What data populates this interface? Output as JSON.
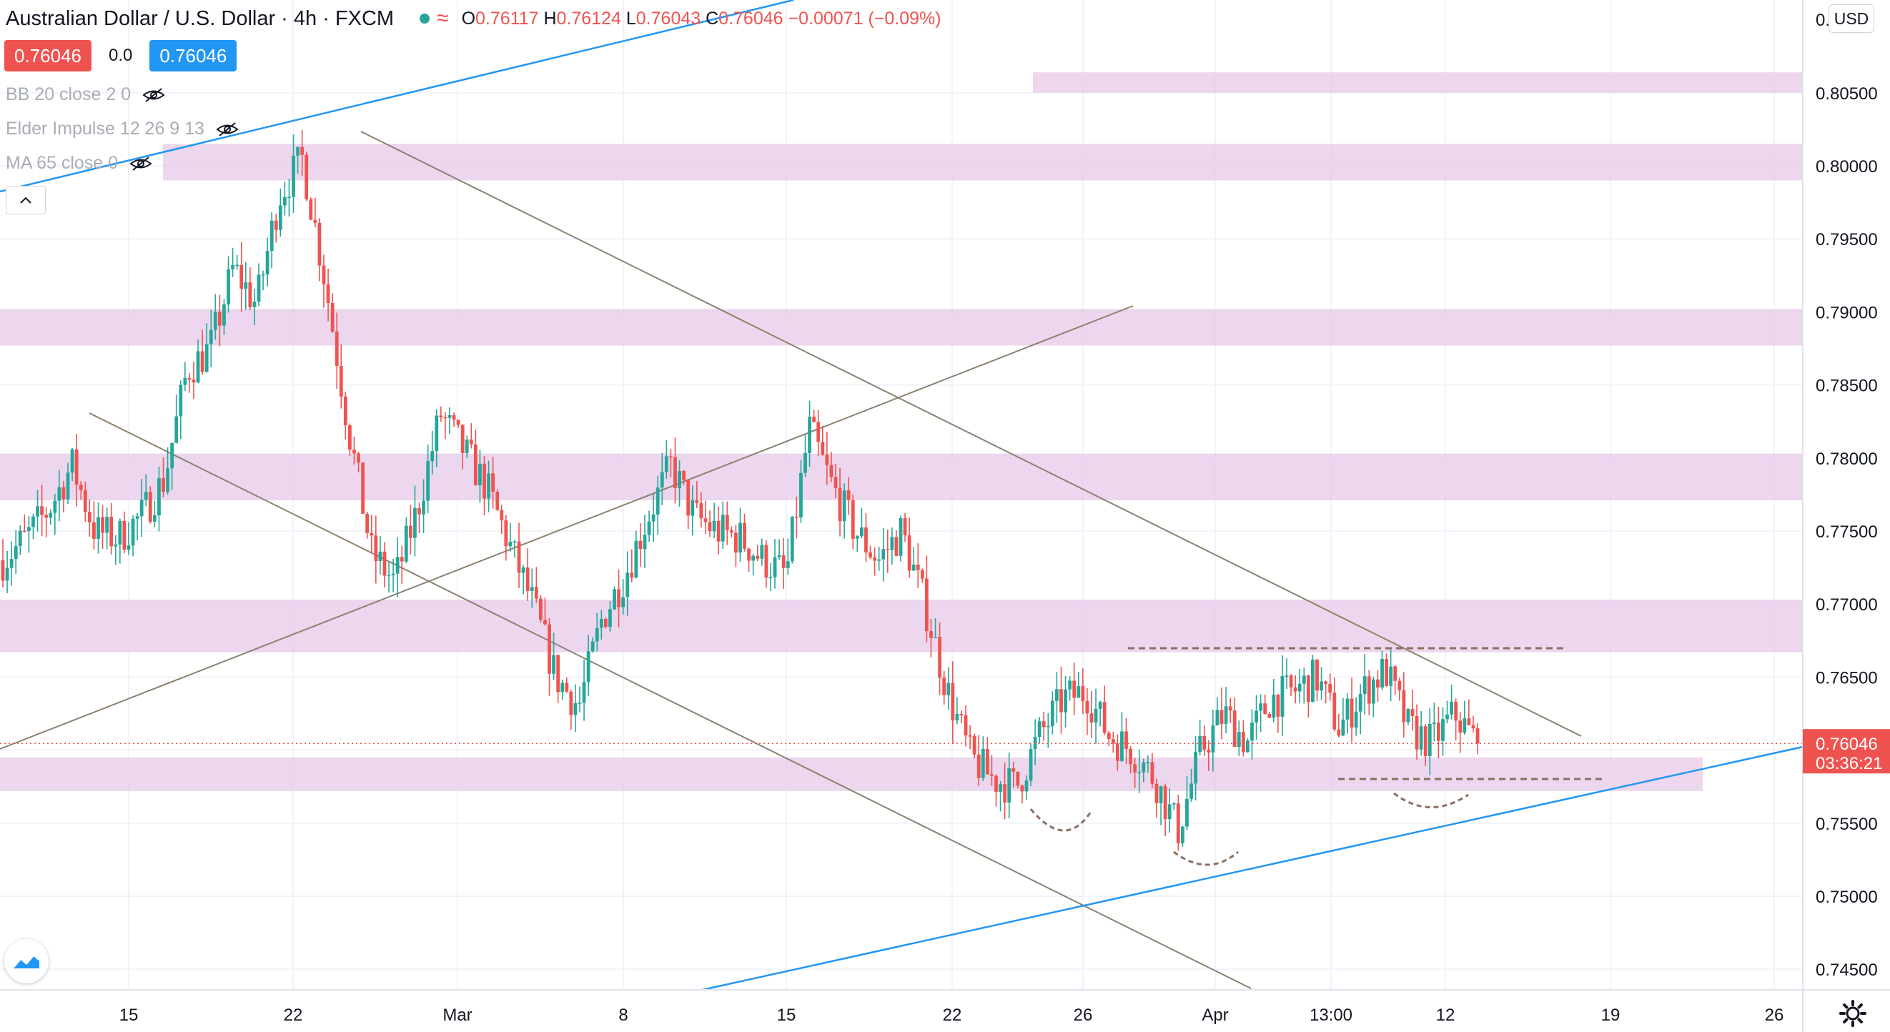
{
  "header": {
    "symbol_title": "Australian Dollar / U.S. Dollar · 4h · FXCM",
    "ohlc": {
      "o_label": "O",
      "o": "0.76117",
      "h_label": "H",
      "h": "0.76124",
      "l_label": "L",
      "l": "0.76043",
      "c_label": "C",
      "c": "0.76046",
      "change": "−0.00071 (−0.09%)"
    },
    "sell_price": "0.76046",
    "spread": "0.0",
    "buy_price": "0.76046",
    "currency_button": "USD"
  },
  "indicators": [
    {
      "label": "BB 20 close 2 0",
      "hidden": true
    },
    {
      "label": "Elder Impulse 12 26 9 13",
      "hidden": true
    },
    {
      "label": "MA 65 close 0",
      "hidden": true
    }
  ],
  "price_axis": {
    "ticks": [
      "0.80500",
      "0.80000",
      "0.79500",
      "0.79000",
      "0.78500",
      "0.78000",
      "0.77500",
      "0.77000",
      "0.76500",
      "0.75500",
      "0.75000",
      "0.74500"
    ],
    "top_partial_label": "0.",
    "current_price_label": "0.76046",
    "countdown_label": "03:36:21"
  },
  "time_axis": {
    "labels": [
      "15",
      "22",
      "Mar",
      "8",
      "15",
      "22",
      "26",
      "Apr",
      "13:00",
      "12",
      "19",
      "26"
    ]
  },
  "colors": {
    "up": "#26a69a",
    "down": "#ef5350",
    "zone": "#e4c7e8",
    "channel_line": "#8c8270",
    "trend_line": "#2196f3",
    "dashed": "#8d6e63",
    "accent": "#2196f3"
  },
  "chart_data": {
    "type": "candlestick",
    "title": "Australian Dollar / U.S. Dollar · 4h · FXCM",
    "current_price": 0.76046,
    "ylim": [
      0.7425,
      0.811
    ],
    "y_ticks": [
      0.805,
      0.8,
      0.795,
      0.79,
      0.785,
      0.78,
      0.775,
      0.77,
      0.765,
      0.755,
      0.75,
      0.745
    ],
    "x_labels": [
      "15",
      "22",
      "Mar",
      "8",
      "15",
      "22",
      "26",
      "Apr",
      "13:00",
      "12",
      "19",
      "26"
    ],
    "price_path": [
      [
        "Feb 11",
        0.773
      ],
      [
        "Feb 13",
        0.7745
      ],
      [
        "Feb 15",
        0.7765
      ],
      [
        "Feb 16",
        0.7795
      ],
      [
        "Feb 17",
        0.775
      ],
      [
        "Feb 18",
        0.7745
      ],
      [
        "Feb 19",
        0.776
      ],
      [
        "Feb 20",
        0.7785
      ],
      [
        "Feb 21",
        0.786
      ],
      [
        "Feb 22",
        0.7875
      ],
      [
        "Feb 23",
        0.793
      ],
      [
        "Feb 24",
        0.7905
      ],
      [
        "Feb 25",
        0.798
      ],
      [
        "Feb 25b",
        0.8005
      ],
      [
        "Feb 26",
        0.792
      ],
      [
        "Feb 26b",
        0.782
      ],
      [
        "Feb 28",
        0.7735
      ],
      [
        "Mar 1",
        0.7715
      ],
      [
        "Mar 2",
        0.7765
      ],
      [
        "Mar 3",
        0.783
      ],
      [
        "Mar 4",
        0.7805
      ],
      [
        "Mar 5",
        0.778
      ],
      [
        "Mar 6",
        0.774
      ],
      [
        "Mar 7",
        0.77
      ],
      [
        "Mar 8",
        0.765
      ],
      [
        "Mar 9",
        0.763
      ],
      [
        "Mar 10",
        0.769
      ],
      [
        "Mar 11",
        0.772
      ],
      [
        "Mar 12",
        0.776
      ],
      [
        "Mar 13",
        0.7795
      ],
      [
        "Mar 14",
        0.776
      ],
      [
        "Mar 15",
        0.775
      ],
      [
        "Mar 16",
        0.7745
      ],
      [
        "Mar 17",
        0.773
      ],
      [
        "Mar 18",
        0.772
      ],
      [
        "Mar 18b",
        0.782
      ],
      [
        "Mar 19",
        0.778
      ],
      [
        "Mar 20",
        0.775
      ],
      [
        "Mar 21",
        0.773
      ],
      [
        "Mar 22",
        0.775
      ],
      [
        "Mar 23",
        0.77
      ],
      [
        "Mar 24",
        0.764
      ],
      [
        "Mar 25",
        0.7595
      ],
      [
        "Mar 26",
        0.758
      ],
      [
        "Mar 26b",
        0.7575
      ],
      [
        "Mar 27",
        0.761
      ],
      [
        "Mar 28",
        0.7635
      ],
      [
        "Mar 29",
        0.764
      ],
      [
        "Mar 30",
        0.761
      ],
      [
        "Mar 31",
        0.76
      ],
      [
        "Apr 1",
        0.758
      ],
      [
        "Apr 1b",
        0.7545
      ],
      [
        "Apr 2",
        0.76
      ],
      [
        "Apr 3",
        0.7625
      ],
      [
        "Apr 4",
        0.7605
      ],
      [
        "Apr 5",
        0.7635
      ],
      [
        "Apr 6",
        0.764
      ],
      [
        "Apr 7",
        0.765
      ],
      [
        "Apr 8",
        0.7615
      ],
      [
        "Apr 9",
        0.764
      ],
      [
        "Apr 10",
        0.7655
      ],
      [
        "Apr 11",
        0.7615
      ],
      [
        "Apr 12",
        0.7605
      ],
      [
        "Apr 13",
        0.7625
      ],
      [
        "Apr 13b",
        0.76046
      ]
    ],
    "support_resistance_zones": [
      [
        0.805,
        0.8064
      ],
      [
        0.799,
        0.8015
      ],
      [
        0.7877,
        0.7902
      ],
      [
        0.7771,
        0.7803
      ],
      [
        0.7667,
        0.7703
      ],
      [
        0.7572,
        0.7595
      ]
    ]
  }
}
